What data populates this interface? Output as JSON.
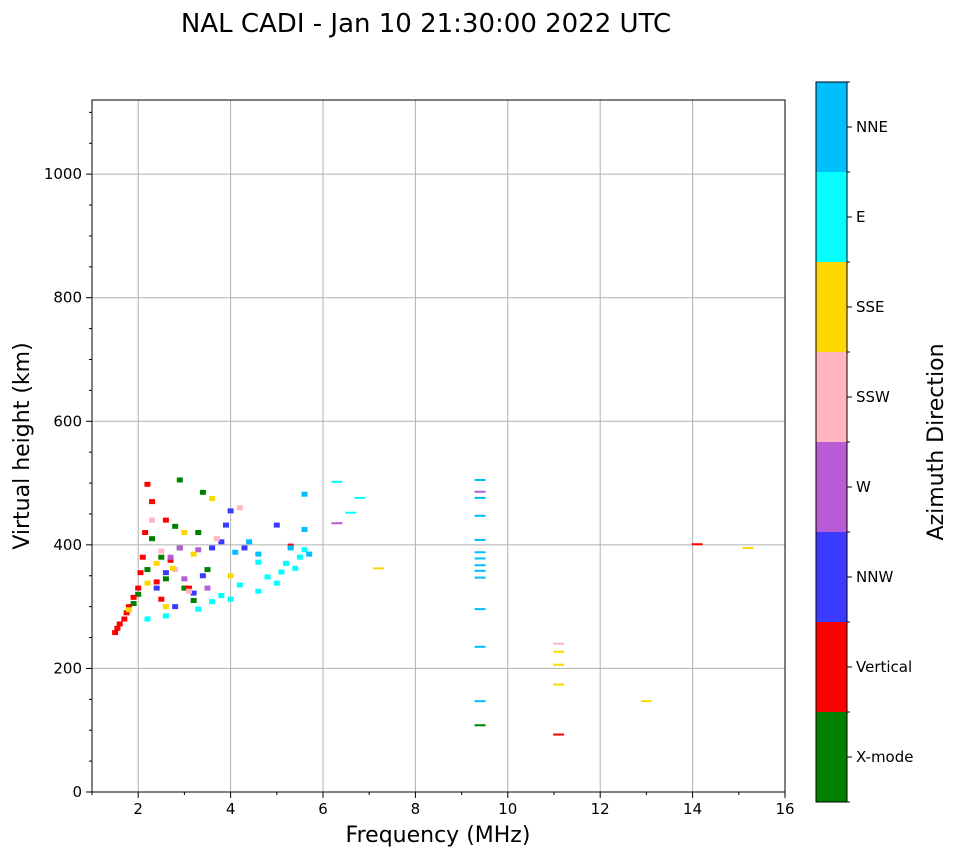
{
  "chart_data": {
    "type": "scatter",
    "title": "NAL CADI - Jan 10 21:30:00 2022 UTC",
    "xlabel": "Frequency (MHz)",
    "ylabel": "Virtual height (km)",
    "xlim": [
      1,
      16
    ],
    "ylim": [
      0,
      1120
    ],
    "xticks": [
      2,
      4,
      6,
      8,
      10,
      12,
      14,
      16
    ],
    "yticks": [
      0,
      200,
      400,
      600,
      800,
      1000
    ],
    "grid": true,
    "colorbar": {
      "label": "Azimuth Direction",
      "categories": [
        {
          "name": "X-mode",
          "color": "#008000"
        },
        {
          "name": "Vertical",
          "color": "#ff0000"
        },
        {
          "name": "NNW",
          "color": "#3b3bff"
        },
        {
          "name": "W",
          "color": "#b85bd6"
        },
        {
          "name": "SSW",
          "color": "#ffb6c1"
        },
        {
          "name": "SSE",
          "color": "#ffd700"
        },
        {
          "name": "E",
          "color": "#00ffff"
        },
        {
          "name": "NNE",
          "color": "#00bfff"
        }
      ]
    },
    "series": [
      {
        "name": "X-mode",
        "points": [
          [
            1.9,
            305
          ],
          [
            2.0,
            320
          ],
          [
            2.2,
            360
          ],
          [
            2.3,
            410
          ],
          [
            2.5,
            380
          ],
          [
            2.6,
            345
          ],
          [
            2.8,
            430
          ],
          [
            2.9,
            505
          ],
          [
            2.9,
            395
          ],
          [
            3.0,
            330
          ],
          [
            3.2,
            310
          ],
          [
            3.3,
            420
          ],
          [
            3.4,
            485
          ],
          [
            3.5,
            360
          ],
          [
            9.4,
            108
          ]
        ]
      },
      {
        "name": "Vertical",
        "points": [
          [
            1.5,
            258
          ],
          [
            1.55,
            265
          ],
          [
            1.6,
            272
          ],
          [
            1.7,
            280
          ],
          [
            1.75,
            290
          ],
          [
            1.8,
            300
          ],
          [
            1.9,
            315
          ],
          [
            2.0,
            330
          ],
          [
            2.05,
            355
          ],
          [
            2.1,
            380
          ],
          [
            2.15,
            420
          ],
          [
            2.2,
            498
          ],
          [
            2.3,
            470
          ],
          [
            2.4,
            340
          ],
          [
            2.5,
            312
          ],
          [
            2.6,
            440
          ],
          [
            2.7,
            375
          ],
          [
            3.1,
            330
          ],
          [
            5.3,
            398
          ],
          [
            11.1,
            93
          ],
          [
            14.1,
            401
          ]
        ]
      },
      {
        "name": "NNW",
        "points": [
          [
            2.4,
            330
          ],
          [
            2.6,
            355
          ],
          [
            2.8,
            300
          ],
          [
            3.2,
            322
          ],
          [
            3.4,
            350
          ],
          [
            3.6,
            395
          ],
          [
            3.8,
            405
          ],
          [
            3.9,
            432
          ],
          [
            4.0,
            455
          ],
          [
            5.0,
            432
          ],
          [
            4.3,
            395
          ]
        ]
      },
      {
        "name": "W",
        "points": [
          [
            2.7,
            380
          ],
          [
            2.9,
            395
          ],
          [
            3.0,
            345
          ],
          [
            3.3,
            392
          ],
          [
            3.5,
            330
          ],
          [
            6.3,
            435
          ],
          [
            9.4,
            486
          ]
        ]
      },
      {
        "name": "SSW",
        "points": [
          [
            2.3,
            440
          ],
          [
            2.5,
            390
          ],
          [
            2.8,
            360
          ],
          [
            3.1,
            325
          ],
          [
            3.7,
            410
          ],
          [
            4.2,
            460
          ],
          [
            11.1,
            240
          ]
        ]
      },
      {
        "name": "SSE",
        "points": [
          [
            1.8,
            295
          ],
          [
            2.2,
            338
          ],
          [
            2.4,
            370
          ],
          [
            2.6,
            300
          ],
          [
            2.75,
            362
          ],
          [
            3.0,
            420
          ],
          [
            3.2,
            385
          ],
          [
            3.6,
            475
          ],
          [
            4.0,
            350
          ],
          [
            7.2,
            362
          ],
          [
            11.1,
            227
          ],
          [
            11.1,
            206
          ],
          [
            11.1,
            174
          ],
          [
            13.0,
            147
          ],
          [
            15.2,
            395
          ]
        ]
      },
      {
        "name": "E",
        "points": [
          [
            2.2,
            280
          ],
          [
            2.6,
            285
          ],
          [
            3.3,
            296
          ],
          [
            3.6,
            308
          ],
          [
            3.8,
            318
          ],
          [
            4.0,
            312
          ],
          [
            4.2,
            335
          ],
          [
            4.6,
            325
          ],
          [
            4.8,
            348
          ],
          [
            5.0,
            338
          ],
          [
            5.2,
            370
          ],
          [
            5.4,
            362
          ],
          [
            5.5,
            380
          ],
          [
            5.6,
            392
          ],
          [
            4.6,
            372
          ],
          [
            5.1,
            356
          ],
          [
            6.3,
            502
          ],
          [
            6.6,
            452
          ],
          [
            6.8,
            476
          ]
        ]
      },
      {
        "name": "NNE",
        "points": [
          [
            4.1,
            388
          ],
          [
            4.4,
            405
          ],
          [
            4.6,
            385
          ],
          [
            5.3,
            395
          ],
          [
            5.7,
            385
          ],
          [
            5.6,
            425
          ],
          [
            5.6,
            482
          ],
          [
            9.4,
            505
          ],
          [
            9.4,
            476
          ],
          [
            9.4,
            447
          ],
          [
            9.4,
            408
          ],
          [
            9.4,
            388
          ],
          [
            9.4,
            378
          ],
          [
            9.4,
            367
          ],
          [
            9.4,
            358
          ],
          [
            9.4,
            347
          ],
          [
            9.4,
            296
          ],
          [
            9.4,
            235
          ],
          [
            9.4,
            147
          ]
        ]
      }
    ]
  }
}
